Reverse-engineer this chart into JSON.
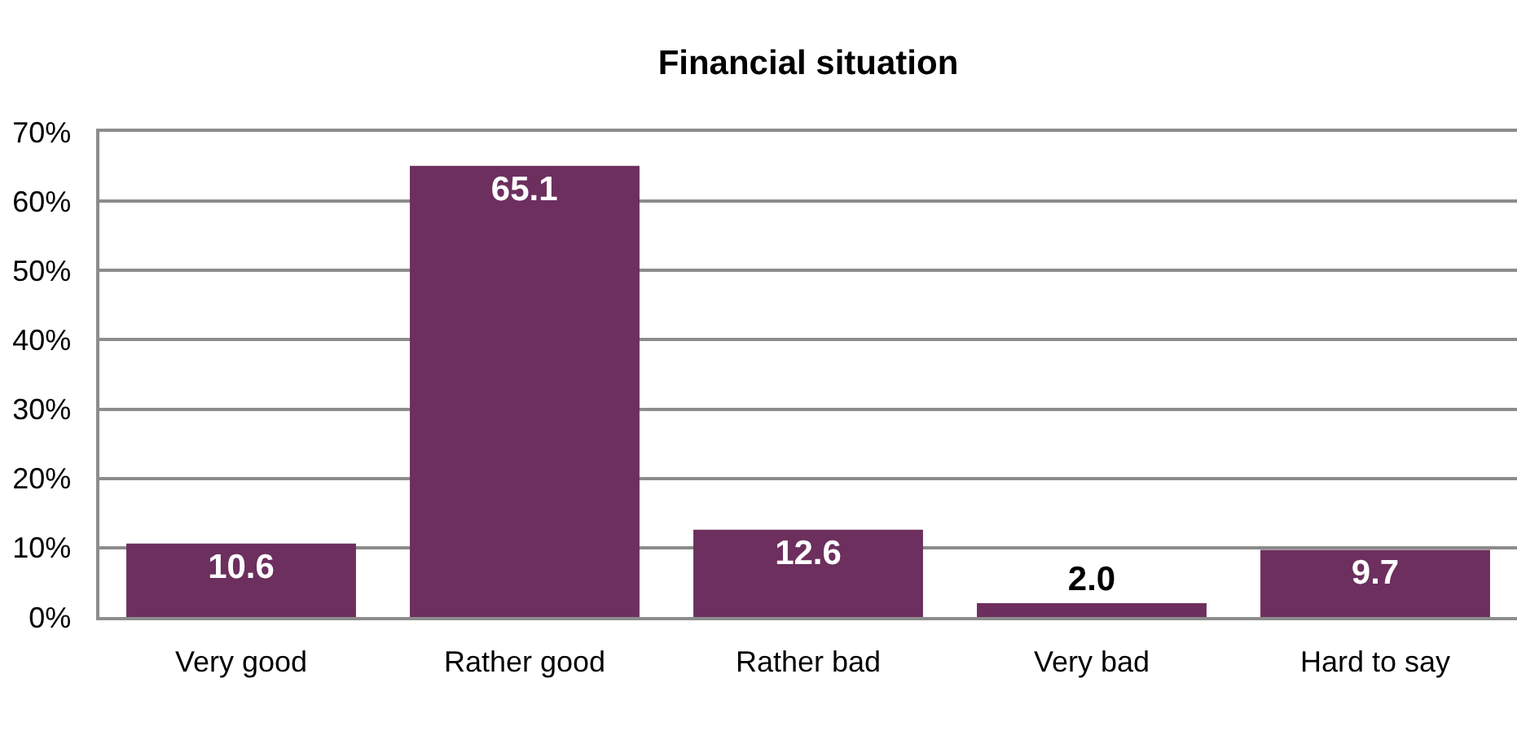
{
  "chart_data": {
    "type": "bar",
    "title": "Financial situation",
    "categories": [
      "Very good",
      "Rather good",
      "Rather bad",
      "Very bad",
      "Hard to say"
    ],
    "values": [
      10.6,
      65.1,
      12.6,
      2.0,
      9.7
    ],
    "color": "#6c2f5e",
    "value_labels": [
      "10.6",
      "65.1",
      "12.6",
      "2.0",
      "9.7"
    ],
    "ylim": [
      0,
      70
    ],
    "yticks": [
      {
        "value": 0,
        "label": "0%"
      },
      {
        "value": 10,
        "label": "10%"
      },
      {
        "value": 20,
        "label": "20%"
      },
      {
        "value": 30,
        "label": "30%"
      },
      {
        "value": 40,
        "label": "40%"
      },
      {
        "value": 50,
        "label": "50%"
      },
      {
        "value": 60,
        "label": "60%"
      },
      {
        "value": 70,
        "label": "70%"
      }
    ],
    "grid": "y"
  }
}
